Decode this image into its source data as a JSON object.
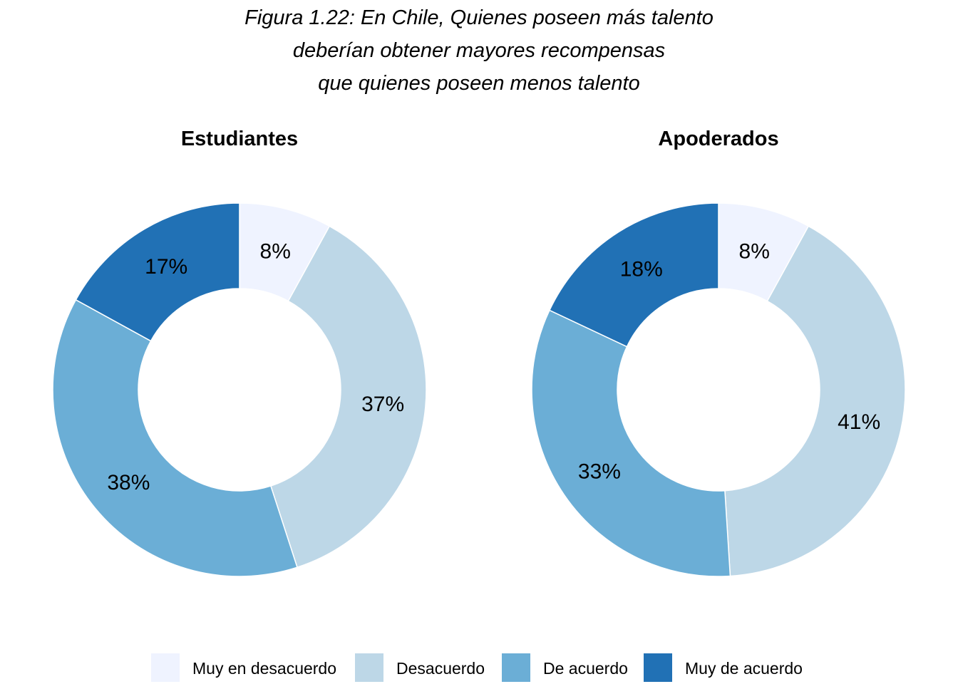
{
  "title_lines": [
    "Figura 1.22: En Chile, Quienes poseen más talento",
    "deberían obtener mayores recompensas",
    "que quienes poseen menos talento"
  ],
  "chart_data": [
    {
      "type": "pie",
      "title": "Estudiantes",
      "categories": [
        "Muy en desacuerdo",
        "Desacuerdo",
        "De acuerdo",
        "Muy de acuerdo"
      ],
      "values": [
        8,
        37,
        38,
        17
      ],
      "labels": [
        "8%",
        "37%",
        "38%",
        "17%"
      ],
      "colors": [
        "#eff3ff",
        "#bdd7e7",
        "#6baed6",
        "#2171b5"
      ]
    },
    {
      "type": "pie",
      "title": "Apoderados",
      "categories": [
        "Muy en desacuerdo",
        "Desacuerdo",
        "De acuerdo",
        "Muy de acuerdo"
      ],
      "values": [
        8,
        41,
        33,
        18
      ],
      "labels": [
        "8%",
        "41%",
        "33%",
        "18%"
      ],
      "colors": [
        "#eff3ff",
        "#bdd7e7",
        "#6baed6",
        "#2171b5"
      ]
    }
  ],
  "legend": {
    "placement": "bottom",
    "items": [
      {
        "label": "Muy en desacuerdo",
        "color": "#eff3ff"
      },
      {
        "label": "Desacuerdo",
        "color": "#bdd7e7"
      },
      {
        "label": "De acuerdo",
        "color": "#6baed6"
      },
      {
        "label": "Muy de acuerdo",
        "color": "#2171b5"
      }
    ]
  }
}
